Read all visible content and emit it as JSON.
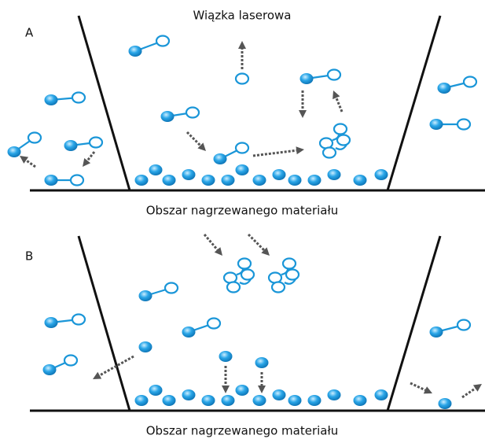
{
  "panels": [
    {
      "label": "A",
      "title": "Wiązka laserowa",
      "caption": "Obszar nagrzewanego materiału"
    },
    {
      "label": "B",
      "caption": "Obszar nagrzewanego materiału"
    }
  ]
}
